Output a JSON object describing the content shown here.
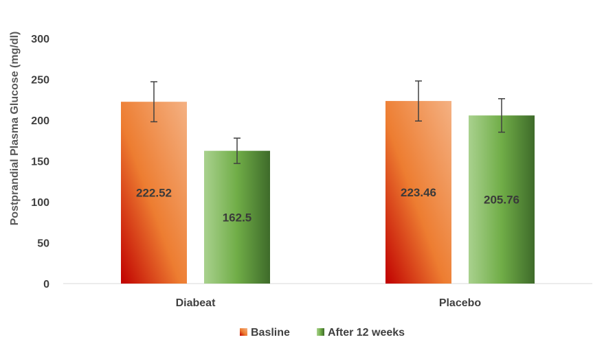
{
  "chart_data": {
    "type": "bar",
    "title": "",
    "xlabel": "",
    "ylabel": "Postprandial Plasma Glucose (mg/dl)",
    "ylim": [
      0,
      300
    ],
    "yticks": [
      0,
      50,
      100,
      150,
      200,
      250,
      300
    ],
    "grid": false,
    "legend_position": "bottom",
    "categories": [
      "Diabeat",
      "Placebo"
    ],
    "series": [
      {
        "name": "Basline",
        "values": [
          222.52,
          223.46
        ],
        "error": [
          24.5,
          24.5
        ],
        "data_labels": [
          "222.52",
          "223.46"
        ],
        "color_dark": "#c00000",
        "color_mid": "#ed7d31",
        "color_light": "#f4b183"
      },
      {
        "name": "After 12 weeks",
        "values": [
          162.5,
          205.76
        ],
        "error": [
          15.5,
          20.5
        ],
        "data_labels": [
          "162.5",
          "205.76"
        ],
        "color_dark": "#3e6b2a",
        "color_mid": "#70ad47",
        "color_light": "#a9d18e"
      }
    ]
  }
}
